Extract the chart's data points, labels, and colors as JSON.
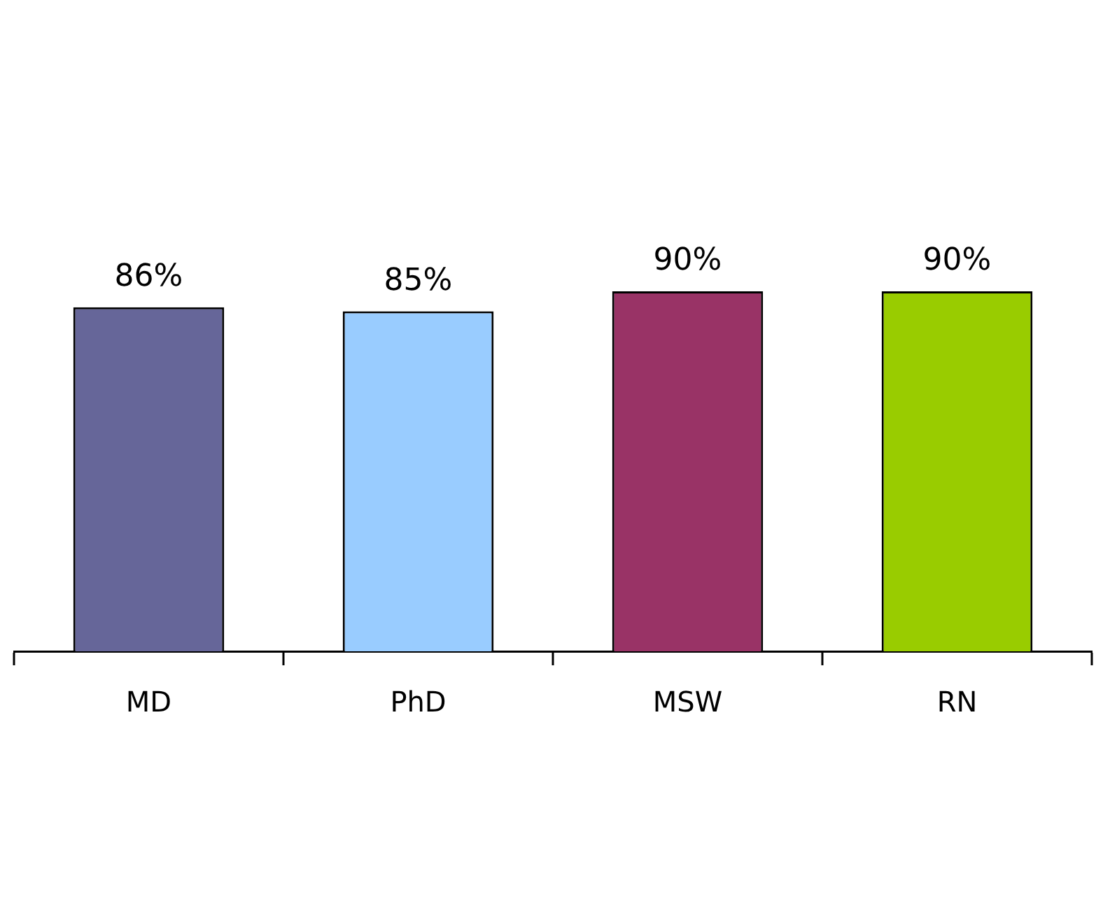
{
  "chart_data": {
    "type": "bar",
    "categories": [
      "MD",
      "PhD",
      "MSW",
      "RN"
    ],
    "values": [
      86,
      85,
      90,
      90
    ],
    "colors": [
      "#666699",
      "#99ccff",
      "#993366",
      "#99cc00"
    ],
    "value_labels": [
      "86%",
      "85%",
      "90%",
      "90%"
    ],
    "tick_labels": "x",
    "grid": false,
    "legend": false
  }
}
